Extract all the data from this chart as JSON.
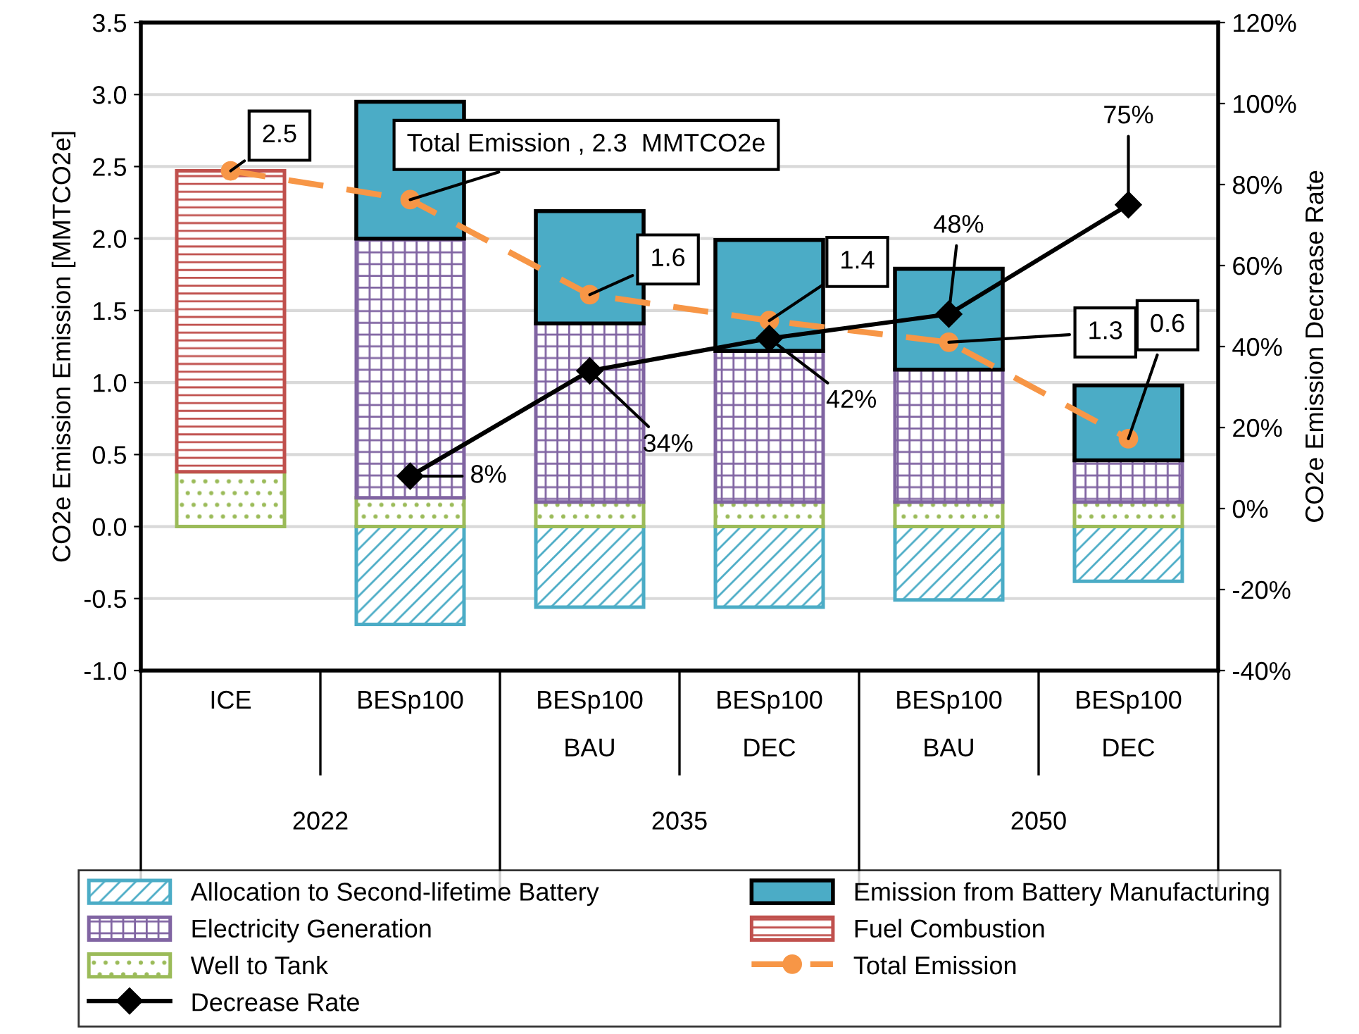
{
  "chart_data": {
    "type": "bar",
    "stacked": true,
    "categories": [
      "ICE",
      "BESp100",
      "BESp100\nBAU",
      "BESp100\nDEC",
      "BESp100\nBAU",
      "BESp100\nDEC"
    ],
    "annotations": [
      "2022",
      "2035",
      "2050"
    ],
    "ylabel": "CO2e Emission Emission [MMTCO2e]",
    "y2label": "CO2e Emission Decrease Rate",
    "ylim": [
      -1.0,
      3.5
    ],
    "yticks": [
      {
        "value": -1.0,
        "label": "-1.0"
      },
      {
        "value": -0.5,
        "label": "-0.5"
      },
      {
        "value": 0,
        "label": "0.0"
      },
      {
        "value": 0.5,
        "label": "0.5"
      },
      {
        "value": 1.0,
        "label": "1.0"
      },
      {
        "value": 1.5,
        "label": "1.5"
      },
      {
        "value": 2.0,
        "label": "2.0"
      },
      {
        "value": 2.5,
        "label": "2.5"
      },
      {
        "value": 3.0,
        "label": "3.0"
      },
      {
        "value": 3.5,
        "label": "3.5"
      }
    ],
    "y2lim": [
      -40,
      120
    ],
    "y2ticks": [
      {
        "value": -40,
        "label": "-40%"
      },
      {
        "value": -20,
        "label": "-20%"
      },
      {
        "value": 0,
        "label": "0%"
      },
      {
        "value": 20,
        "label": "20%"
      },
      {
        "value": 40,
        "label": "40%"
      },
      {
        "value": 60,
        "label": "60%"
      },
      {
        "value": 80,
        "label": "80%"
      },
      {
        "value": 100,
        "label": "100%"
      },
      {
        "value": 120,
        "label": "120%"
      }
    ],
    "grid": "y",
    "legend": "bottom",
    "series": [
      {
        "name": "Allocation to Second-lifetime Battery",
        "color": "#4bacc6",
        "values": [
          null,
          -0.68,
          -0.56,
          -0.56,
          -0.51,
          -0.38
        ]
      },
      {
        "name": "Well to Tank",
        "color": "#9bbb59",
        "values": [
          0.38,
          0.2,
          0.17,
          0.17,
          0.17,
          0.17
        ]
      },
      {
        "name": "Electricity Generation",
        "color": "#8064a2",
        "values": [
          null,
          1.8,
          1.24,
          1.05,
          0.92,
          0.29
        ]
      },
      {
        "name": "Fuel Combustion",
        "color": "#c0504d",
        "values": [
          2.09,
          null,
          null,
          null,
          null,
          null
        ]
      },
      {
        "name": "Emission from Battery Manufacturing",
        "color": "#4bacc6",
        "values": [
          null,
          0.95,
          0.78,
          0.77,
          0.7,
          0.52
        ]
      },
      {
        "name": "Total Emission",
        "type": "line",
        "color": "#f79646",
        "marker": "circle",
        "line_style": "dashed",
        "values": [
          2.47,
          2.27,
          1.61,
          1.43,
          1.28,
          0.61
        ],
        "value_labels": [
          "2.5",
          "Total Emission , 2.3  MMTCO2e",
          "1.6",
          "1.4",
          "1.3",
          "0.6"
        ]
      },
      {
        "name": "Decrease Rate",
        "type": "line",
        "axis": "y2",
        "color": "#000000",
        "marker": "diamond",
        "line_style": "solid",
        "values": [
          null,
          8,
          34,
          42,
          48,
          75
        ],
        "value_labels": [
          null,
          "8%",
          "34%",
          "42%",
          "48%",
          "75%"
        ]
      }
    ]
  }
}
